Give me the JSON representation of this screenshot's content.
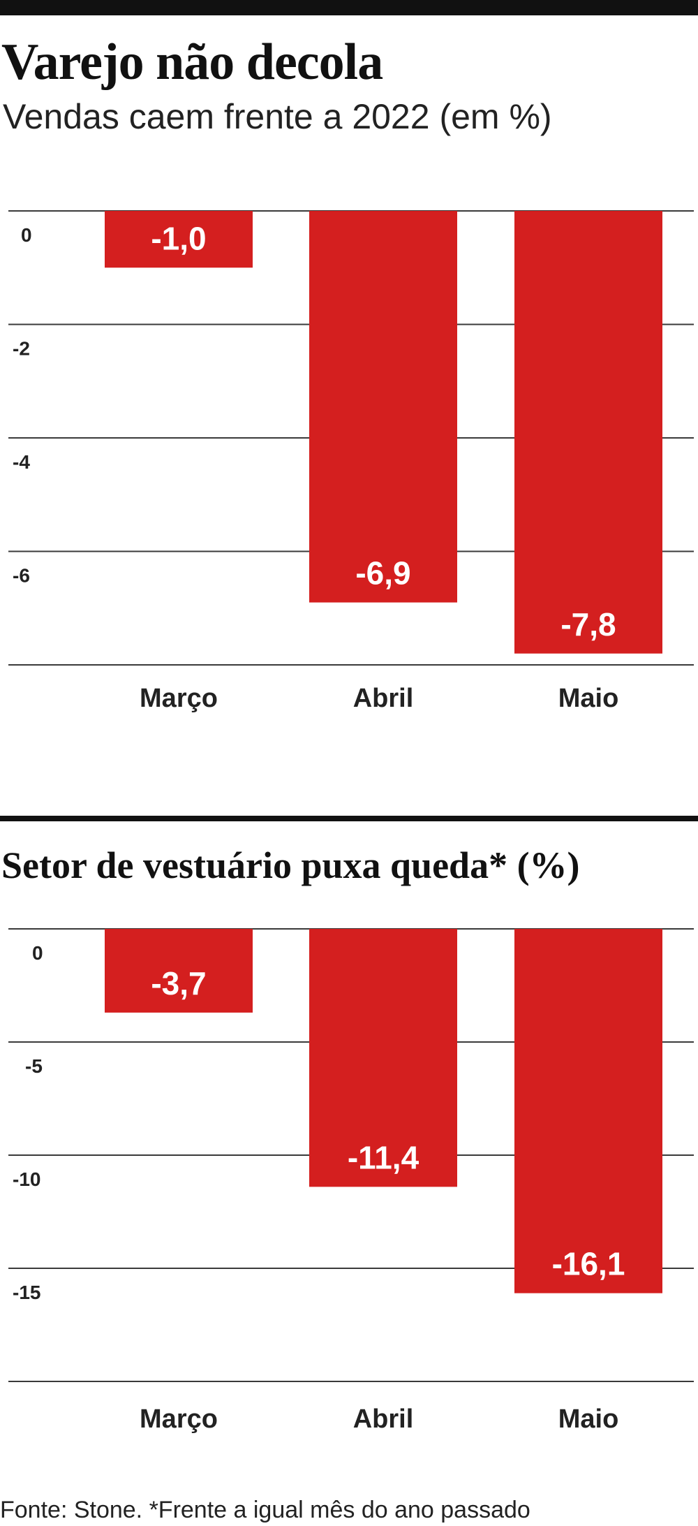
{
  "header": {
    "title": "Varejo não decola",
    "subtitle": "Vendas caem frente a 2022 (em %)"
  },
  "section2": {
    "title": "Setor de vestuário puxa queda* (%)"
  },
  "footer": {
    "source": "Fonte: Stone. *Frente a igual mês do ano passado"
  },
  "colors": {
    "bar": "#d41f1f",
    "grid": "#3a3a3a",
    "rule": "#111111"
  },
  "chart_data": [
    {
      "type": "bar",
      "title": "Varejo não decola",
      "subtitle": "Vendas caem frente a 2022 (em %)",
      "categories": [
        "Março",
        "Abril",
        "Maio"
      ],
      "values": [
        -1.0,
        -6.9,
        -7.8
      ],
      "value_labels": [
        "-1,0",
        "-6,9",
        "-7,8"
      ],
      "yticks": [
        0,
        -2,
        -4,
        -6
      ],
      "ytick_labels": [
        "0",
        "-2",
        "-4",
        "-6"
      ],
      "ylim": [
        -8,
        0
      ],
      "grid": true,
      "legend": "none"
    },
    {
      "type": "bar",
      "title": "Setor de vestuário puxa queda* (%)",
      "categories": [
        "Março",
        "Abril",
        "Maio"
      ],
      "values": [
        -3.7,
        -11.4,
        -16.1
      ],
      "value_labels": [
        "-3,7",
        "-11,4",
        "-16,1"
      ],
      "yticks": [
        0,
        -5,
        -10,
        -15
      ],
      "ytick_labels": [
        "0",
        "-5",
        "-10",
        "-15"
      ],
      "ylim": [
        -20,
        0
      ],
      "grid": true,
      "legend": "none"
    }
  ]
}
